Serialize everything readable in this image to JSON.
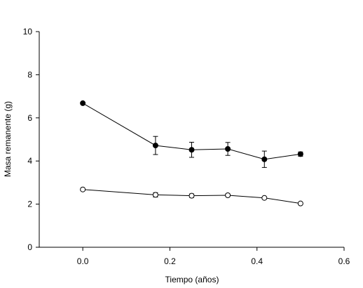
{
  "chart_data": {
    "type": "line",
    "title": "",
    "xlabel": "Tiempo (años)",
    "ylabel": "Masa remanente (g)",
    "xlim": [
      -0.1,
      0.6
    ],
    "ylim": [
      0,
      10
    ],
    "xticks": [
      0.0,
      0.2,
      0.4,
      0.6
    ],
    "xtick_labels": [
      "0.0",
      "0.2",
      "0.4",
      "0.6"
    ],
    "yticks": [
      0,
      2,
      4,
      6,
      8,
      10
    ],
    "ytick_labels": [
      "0",
      "2",
      "4",
      "6",
      "8",
      "10"
    ],
    "grid": false,
    "x": [
      0.0,
      0.167,
      0.25,
      0.333,
      0.417,
      0.5
    ],
    "series": [
      {
        "marker": "filled-circle",
        "color": "#000000",
        "values": [
          6.68,
          4.72,
          4.52,
          4.56,
          4.08,
          4.32
        ],
        "errors": [
          0,
          0.42,
          0.35,
          0.3,
          0.38,
          0.1
        ]
      },
      {
        "marker": "open-circle",
        "color": "#000000",
        "values": [
          2.68,
          2.43,
          2.39,
          2.41,
          2.29,
          2.03
        ],
        "errors": [
          0,
          0.1,
          0.08,
          0.06,
          0,
          0.05
        ]
      }
    ]
  }
}
